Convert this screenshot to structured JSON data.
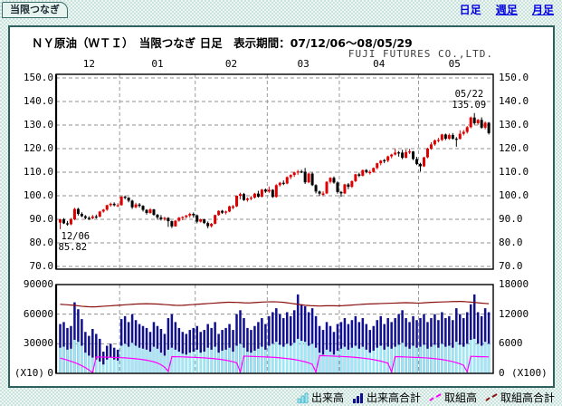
{
  "page": {
    "tab_label": "当限つなぎ",
    "period_links": [
      {
        "label": "日足",
        "active": true
      },
      {
        "label": "週足",
        "active": false
      },
      {
        "label": "月足",
        "active": false
      }
    ],
    "title": "ＮＹ原油（ＷＴＩ）　当限つなぎ 日足　表示期間：07/12/06～08/05/29",
    "company": "FUJI FUTURES CO.,LTD."
  },
  "chart_data": {
    "type": "candlestick+volume",
    "price": {
      "ylim": [
        70,
        150
      ],
      "yticks": [
        150,
        140,
        130,
        120,
        110,
        100,
        90,
        80,
        70
      ],
      "month_labels": [
        "12",
        "01",
        "02",
        "03",
        "04",
        "05"
      ],
      "month_start_indices": [
        17,
        38,
        58,
        78,
        100
      ],
      "grid": true,
      "up_color": "#dd0000",
      "down_color": "#000000",
      "annotations": [
        {
          "index": 0,
          "date": "12/06",
          "value": "85.82",
          "placement": "below-start"
        },
        {
          "index": 115,
          "date": "05/22",
          "value": "135.09",
          "placement": "above-end"
        }
      ],
      "ohlc": [
        [
          88.6,
          90.2,
          85.82,
          90.0
        ],
        [
          90.0,
          90.5,
          88.0,
          88.3
        ],
        [
          88.3,
          89.3,
          87.3,
          87.9
        ],
        [
          87.9,
          90.6,
          87.5,
          90.0
        ],
        [
          90.0,
          94.9,
          89.6,
          94.4
        ],
        [
          94.4,
          94.9,
          91.6,
          92.3
        ],
        [
          92.3,
          93.0,
          90.9,
          91.3
        ],
        [
          91.3,
          91.8,
          90.0,
          90.6
        ],
        [
          90.6,
          91.3,
          89.7,
          90.5
        ],
        [
          90.5,
          91.9,
          90.0,
          91.2
        ],
        [
          91.2,
          92.0,
          90.3,
          91.1
        ],
        [
          91.1,
          93.6,
          90.9,
          93.3
        ],
        [
          93.3,
          94.4,
          92.8,
          94.1
        ],
        [
          94.1,
          96.2,
          93.6,
          96.0
        ],
        [
          96.0,
          97.1,
          95.3,
          96.6
        ],
        [
          96.6,
          97.2,
          95.5,
          96.0
        ],
        [
          95.7,
          96.8,
          95.2,
          96.0
        ],
        [
          96.0,
          99.8,
          95.8,
          99.6
        ],
        [
          99.6,
          100.1,
          98.5,
          99.2
        ],
        [
          99.2,
          99.4,
          97.2,
          97.9
        ],
        [
          97.9,
          98.3,
          94.4,
          95.1
        ],
        [
          95.1,
          97.0,
          94.7,
          96.3
        ],
        [
          96.3,
          96.9,
          95.0,
          95.7
        ],
        [
          95.7,
          96.0,
          93.3,
          94.0
        ],
        [
          94.0,
          94.3,
          92.0,
          92.7
        ],
        [
          92.7,
          94.7,
          92.4,
          94.2
        ],
        [
          94.2,
          94.4,
          91.5,
          91.9
        ],
        [
          91.9,
          92.3,
          89.9,
          90.8
        ],
        [
          90.8,
          91.8,
          89.5,
          90.1
        ],
        [
          90.1,
          91.1,
          89.4,
          90.6
        ],
        [
          90.6,
          90.9,
          86.8,
          89.2
        ],
        [
          89.2,
          89.5,
          86.3,
          87.0
        ],
        [
          87.0,
          89.7,
          86.9,
          89.4
        ],
        [
          89.4,
          91.0,
          89.0,
          90.7
        ],
        [
          90.7,
          91.3,
          89.6,
          91.0
        ],
        [
          91.0,
          91.9,
          90.4,
          91.6
        ],
        [
          91.6,
          92.8,
          90.7,
          92.3
        ],
        [
          92.3,
          92.9,
          90.7,
          91.7
        ],
        [
          91.7,
          92.0,
          88.3,
          89.0
        ],
        [
          89.0,
          90.3,
          88.6,
          90.0
        ],
        [
          90.0,
          90.2,
          88.0,
          88.4
        ],
        [
          88.4,
          89.1,
          86.2,
          87.1
        ],
        [
          87.1,
          88.5,
          86.5,
          88.1
        ],
        [
          88.1,
          92.0,
          87.9,
          91.8
        ],
        [
          91.8,
          93.8,
          91.5,
          93.6
        ],
        [
          93.6,
          94.0,
          92.3,
          92.8
        ],
        [
          92.8,
          93.7,
          92.1,
          93.3
        ],
        [
          93.3,
          95.8,
          93.0,
          95.5
        ],
        [
          94.9,
          96.1,
          94.3,
          95.5
        ],
        [
          95.5,
          100.1,
          95.2,
          100.0
        ],
        [
          100.0,
          101.3,
          98.5,
          100.7
        ],
        [
          100.7,
          101.2,
          97.8,
          98.2
        ],
        [
          98.2,
          99.3,
          97.5,
          98.8
        ],
        [
          98.8,
          99.9,
          98.1,
          99.2
        ],
        [
          99.2,
          101.2,
          98.8,
          100.9
        ],
        [
          100.9,
          102.1,
          99.2,
          99.6
        ],
        [
          99.6,
          102.9,
          99.3,
          102.6
        ],
        [
          102.6,
          103.1,
          101.2,
          101.8
        ],
        [
          101.8,
          103.9,
          101.2,
          102.5
        ],
        [
          102.5,
          102.8,
          99.1,
          99.5
        ],
        [
          99.5,
          104.9,
          99.2,
          104.5
        ],
        [
          104.5,
          105.9,
          103.9,
          105.5
        ],
        [
          105.5,
          106.5,
          104.5,
          105.2
        ],
        [
          105.2,
          108.2,
          104.9,
          107.9
        ],
        [
          107.9,
          109.1,
          107.0,
          108.8
        ],
        [
          108.8,
          110.2,
          108.0,
          109.9
        ],
        [
          109.9,
          111.0,
          108.9,
          110.3
        ],
        [
          110.3,
          111.0,
          109.6,
          110.2
        ],
        [
          110.2,
          111.8,
          105.0,
          105.7
        ],
        [
          105.7,
          109.9,
          105.3,
          109.4
        ],
        [
          109.4,
          109.9,
          104.1,
          104.5
        ],
        [
          104.5,
          104.9,
          101.0,
          101.8
        ],
        [
          101.8,
          102.2,
          99.9,
          100.9
        ],
        [
          100.4,
          101.9,
          99.8,
          101.0
        ],
        [
          101.0,
          106.2,
          100.7,
          105.9
        ],
        [
          105.9,
          107.9,
          105.2,
          107.6
        ],
        [
          107.6,
          108.2,
          105.1,
          105.6
        ],
        [
          105.6,
          106.1,
          100.9,
          101.6
        ],
        [
          101.6,
          102.0,
          99.6,
          101.0
        ],
        [
          101.0,
          105.1,
          100.7,
          104.8
        ],
        [
          104.8,
          105.4,
          102.8,
          103.8
        ],
        [
          103.8,
          106.5,
          103.3,
          106.2
        ],
        [
          106.2,
          109.3,
          105.8,
          109.1
        ],
        [
          109.1,
          109.8,
          107.9,
          108.5
        ],
        [
          108.5,
          111.1,
          108.2,
          110.9
        ],
        [
          110.9,
          111.3,
          109.5,
          110.1
        ],
        [
          109.6,
          110.9,
          109.0,
          110.1
        ],
        [
          110.1,
          112.0,
          109.8,
          111.8
        ],
        [
          111.8,
          114.0,
          111.2,
          113.8
        ],
        [
          113.8,
          115.2,
          112.9,
          114.9
        ],
        [
          115.1,
          115.6,
          113.8,
          114.9
        ],
        [
          114.9,
          117.0,
          114.2,
          116.7
        ],
        [
          116.7,
          117.8,
          115.9,
          117.5
        ],
        [
          117.5,
          119.9,
          117.1,
          118.3
        ],
        [
          118.4,
          119.0,
          116.6,
          118.3
        ],
        [
          118.3,
          119.5,
          115.5,
          116.1
        ],
        [
          116.1,
          119.6,
          115.9,
          118.5
        ],
        [
          118.5,
          119.9,
          117.7,
          118.8
        ],
        [
          118.8,
          119.0,
          115.1,
          115.6
        ],
        [
          115.6,
          116.5,
          113.0,
          113.5
        ],
        [
          113.5,
          114.0,
          110.3,
          112.5
        ],
        [
          112.5,
          116.5,
          112.2,
          116.3
        ],
        [
          116.3,
          120.4,
          115.9,
          120.0
        ],
        [
          120.0,
          122.7,
          119.5,
          121.8
        ],
        [
          121.8,
          123.9,
          121.2,
          123.5
        ],
        [
          123.5,
          124.6,
          122.6,
          123.7
        ],
        [
          123.7,
          126.3,
          123.2,
          126.0
        ],
        [
          126.0,
          126.4,
          123.6,
          124.2
        ],
        [
          124.2,
          126.4,
          123.7,
          125.8
        ],
        [
          125.8,
          126.6,
          123.8,
          124.2
        ],
        [
          124.2,
          124.9,
          120.8,
          124.1
        ],
        [
          124.1,
          127.8,
          123.9,
          126.3
        ],
        [
          126.3,
          127.9,
          125.6,
          127.1
        ],
        [
          127.1,
          129.6,
          126.4,
          129.1
        ],
        [
          129.1,
          133.6,
          128.6,
          133.2
        ],
        [
          133.2,
          135.09,
          130.2,
          130.8
        ],
        [
          130.8,
          132.6,
          130.1,
          132.2
        ],
        [
          132.2,
          133.3,
          128.4,
          128.9
        ],
        [
          128.9,
          131.6,
          128.2,
          131.0
        ],
        [
          131.0,
          131.3,
          126.0,
          126.6
        ]
      ]
    },
    "volume": {
      "left_ylim": [
        0,
        90000
      ],
      "left_ticks": [
        90000,
        60000,
        30000,
        0
      ],
      "left_unit": "(X10)",
      "right_ylim": [
        0,
        18000
      ],
      "right_ticks": [
        18000,
        12000,
        6000,
        0
      ],
      "right_unit": "(X100)",
      "total": [
        50000,
        52000,
        46000,
        48000,
        72000,
        65000,
        55000,
        42000,
        38000,
        45000,
        40000,
        35000,
        22000,
        28000,
        30000,
        26000,
        24000,
        55000,
        58000,
        52000,
        60000,
        54000,
        50000,
        48000,
        46000,
        42000,
        52000,
        48000,
        45000,
        40000,
        56000,
        60000,
        52000,
        46000,
        42000,
        40000,
        44000,
        46000,
        48000,
        42000,
        44000,
        50000,
        46000,
        52000,
        40000,
        44000,
        46000,
        50000,
        44000,
        60000,
        64000,
        56000,
        46000,
        44000,
        48000,
        52000,
        56000,
        50000,
        58000,
        62000,
        66000,
        60000,
        56000,
        62000,
        58000,
        64000,
        80000,
        70000,
        68000,
        62000,
        66000,
        58000,
        48000,
        44000,
        52000,
        48000,
        42000,
        50000,
        52000,
        56000,
        50000,
        54000,
        58000,
        52000,
        56000,
        50000,
        44000,
        48000,
        54000,
        58000,
        50000,
        56000,
        52000,
        56000,
        60000,
        64000,
        56000,
        52000,
        58000,
        54000,
        56000,
        60000,
        52000,
        56000,
        60000,
        54000,
        62000,
        56000,
        58000,
        54000,
        66000,
        60000,
        56000,
        62000,
        70000,
        80000,
        62000,
        58000,
        66000,
        62000
      ],
      "front": [
        26000,
        27000,
        24000,
        25000,
        34000,
        32000,
        28000,
        21000,
        18000,
        16000,
        14000,
        12000,
        9000,
        14000,
        16000,
        14000,
        13000,
        28000,
        30000,
        27000,
        31000,
        28000,
        26000,
        25000,
        24000,
        22000,
        27000,
        25000,
        21000,
        18000,
        24000,
        26000,
        24000,
        22000,
        20000,
        19000,
        21000,
        22000,
        24000,
        21000,
        22000,
        26000,
        24000,
        27000,
        21000,
        23000,
        24000,
        26000,
        22000,
        28000,
        30000,
        26000,
        22000,
        21000,
        23000,
        25000,
        27000,
        24000,
        28000,
        30000,
        32000,
        29000,
        27000,
        30000,
        28000,
        31000,
        35000,
        33000,
        32000,
        28000,
        30000,
        26000,
        21000,
        19000,
        24000,
        22000,
        19000,
        23000,
        25000,
        27000,
        24000,
        26000,
        28000,
        25000,
        27000,
        24000,
        21000,
        23000,
        26000,
        28000,
        24000,
        27000,
        25000,
        27000,
        29000,
        31000,
        27000,
        25000,
        28000,
        26000,
        27000,
        29000,
        25000,
        27000,
        29000,
        26000,
        30000,
        27000,
        28000,
        26000,
        32000,
        29000,
        27000,
        30000,
        34000,
        35000,
        30000,
        28000,
        32000,
        30000
      ],
      "oi_front": [
        3100,
        2900,
        2700,
        2450,
        2200,
        1900,
        1550,
        1150,
        700,
        150,
        3350,
        3320,
        3300,
        3280,
        3250,
        3220,
        3200,
        3180,
        3140,
        3090,
        3030,
        2960,
        2880,
        2780,
        2660,
        2520,
        2340,
        2100,
        1750,
        1250,
        400,
        3400,
        3380,
        3360,
        3340,
        3310,
        3280,
        3250,
        3220,
        3180,
        3140,
        3090,
        3030,
        2960,
        2880,
        2780,
        2660,
        2520,
        2350,
        2150,
        300,
        3500,
        3480,
        3450,
        3420,
        3390,
        3360,
        3330,
        3300,
        3260,
        3210,
        3150,
        3080,
        3000,
        2910,
        2800,
        2670,
        2520,
        2340,
        2120,
        1850,
        250,
        3600,
        3580,
        3550,
        3520,
        3490,
        3460,
        3430,
        3390,
        3350,
        3300,
        3240,
        3170,
        3090,
        3000,
        2900,
        2780,
        2640,
        2480,
        2290,
        2060,
        300,
        3400,
        3380,
        3350,
        3320,
        3290,
        3260,
        3230,
        3200,
        3160,
        3110,
        3050,
        2980,
        2900,
        2800,
        2680,
        2540,
        2370,
        2170,
        1930,
        1640,
        280,
        3450,
        3430,
        3400,
        3380,
        3360,
        3340
      ],
      "oi_total": [
        14000,
        13950,
        13900,
        13850,
        13800,
        13700,
        13600,
        13550,
        13500,
        13480,
        13500,
        13550,
        13600,
        13650,
        13700,
        13750,
        13800,
        13850,
        13900,
        13950,
        14000,
        14050,
        14080,
        14100,
        14120,
        14100,
        14080,
        14050,
        14000,
        13950,
        13900,
        13850,
        13800,
        13780,
        13800,
        13850,
        13900,
        13950,
        14000,
        14050,
        14100,
        14150,
        14200,
        14250,
        14300,
        14350,
        14400,
        14420,
        14400,
        14380,
        14350,
        14300,
        14280,
        14300,
        14350,
        14400,
        14450,
        14480,
        14500,
        14520,
        14500,
        14450,
        14400,
        14300,
        14200,
        14100,
        14000,
        13900,
        13800,
        13750,
        13700,
        13680,
        13650,
        13680,
        13700,
        13720,
        13700,
        13680,
        13700,
        13750,
        13800,
        13850,
        13900,
        13950,
        14000,
        14050,
        14080,
        14100,
        14120,
        14150,
        14180,
        14200,
        14220,
        14250,
        14280,
        14300,
        14320,
        14300,
        14280,
        14250,
        14250,
        14300,
        14350,
        14400,
        14420,
        14450,
        14480,
        14500,
        14520,
        14550,
        14560,
        14580,
        14560,
        14500,
        14440,
        14380,
        14300,
        14240,
        14180,
        14120
      ]
    },
    "legend": [
      {
        "label": "出来高",
        "type": "bars",
        "color": "#9de9f5"
      },
      {
        "label": "出来高合計",
        "type": "bars",
        "color": "#101090"
      },
      {
        "label": "取組高",
        "type": "line",
        "color": "#ff00ff"
      },
      {
        "label": "取組高合計",
        "type": "line",
        "color": "#8b1010"
      }
    ]
  }
}
